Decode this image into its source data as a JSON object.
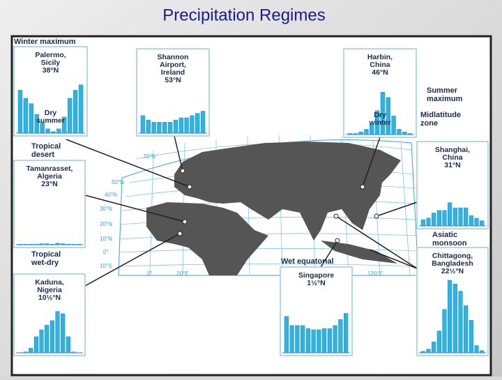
{
  "header": {
    "title": "Precipitation Regimes"
  },
  "map_labels": [
    {
      "lines": [
        "Winter maximum"
      ]
    },
    {
      "lines": [
        "Tropical",
        "desert"
      ]
    },
    {
      "lines": [
        "Tropical",
        "wet-dry"
      ]
    },
    {
      "lines": [
        "Summer",
        "maximum"
      ]
    },
    {
      "lines": [
        "Midlatitude",
        "zone"
      ]
    },
    {
      "lines": [
        "Asiatic",
        "monsoon"
      ]
    },
    {
      "lines": [
        "Wet equatorial"
      ]
    }
  ],
  "latitudes": [
    "70°N",
    "50°N",
    "40°N",
    "30°N",
    "20°N",
    "10°N",
    "0°",
    "10°S"
  ],
  "longitudes": [
    "0°",
    "20°E",
    "120°E"
  ],
  "panels": [
    {
      "lines": [
        "Palermo,",
        "Sicily",
        "38°N"
      ],
      "note": [
        "Dry",
        "summer"
      ],
      "ylim": [
        0,
        100
      ],
      "values": [
        80,
        65,
        55,
        35,
        20,
        8,
        3,
        8,
        30,
        65,
        80,
        90
      ]
    },
    {
      "lines": [
        "Shannon",
        "Airport,",
        "Ireland",
        "53°N"
      ],
      "ylim": [
        0,
        100
      ],
      "values": [
        40,
        30,
        25,
        25,
        25,
        25,
        30,
        35,
        35,
        40,
        45,
        50
      ]
    },
    {
      "lines": [
        "Harbin,",
        "China",
        "46°N"
      ],
      "note": [
        "Dry",
        "winter"
      ],
      "ylim": [
        0,
        100
      ],
      "values": [
        2,
        2,
        5,
        10,
        20,
        45,
        80,
        70,
        35,
        10,
        5,
        2
      ]
    },
    {
      "lines": [
        "Tamanrasset,",
        "Algeria",
        "23°N"
      ],
      "ylim": [
        0,
        100
      ],
      "values": [
        1,
        1,
        1,
        1,
        2,
        2,
        1,
        3,
        2,
        1,
        1,
        1
      ]
    },
    {
      "lines": [
        "Kaduna,",
        "Nigeria",
        "10½°N"
      ],
      "ylim": [
        0,
        100
      ],
      "values": [
        0,
        2,
        10,
        35,
        50,
        60,
        70,
        90,
        85,
        35,
        2,
        0
      ]
    },
    {
      "lines": [
        "Singapore",
        "1½°N"
      ],
      "ylim": [
        0,
        100
      ],
      "values": [
        60,
        45,
        45,
        45,
        40,
        38,
        38,
        40,
        40,
        45,
        55,
        65
      ]
    },
    {
      "lines": [
        "Shanghai,",
        "China",
        "31°N"
      ],
      "ylim": [
        0,
        100
      ],
      "values": [
        12,
        15,
        25,
        30,
        30,
        45,
        35,
        35,
        35,
        20,
        15,
        10
      ]
    },
    {
      "lines": [
        "Chittagong,",
        "Bangladesh",
        "22½°N"
      ],
      "ylim": [
        0,
        100
      ],
      "values": [
        2,
        5,
        15,
        30,
        60,
        100,
        95,
        85,
        65,
        45,
        10,
        3
      ]
    }
  ]
}
